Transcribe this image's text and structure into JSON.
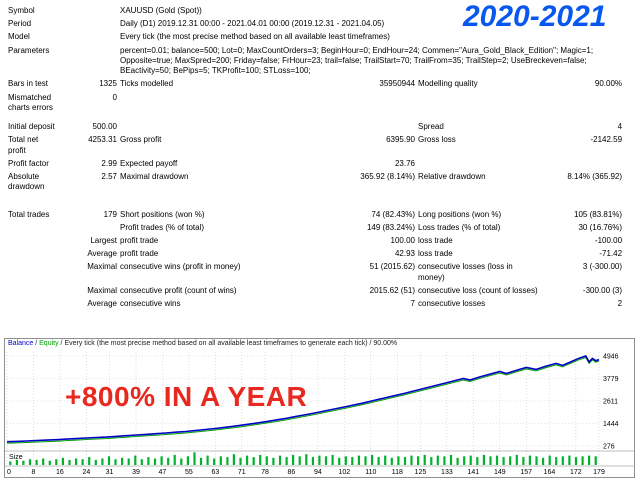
{
  "overlays": {
    "years": "2020-2021",
    "years_color": "#0857ee",
    "claim": "+800% IN A YEAR",
    "claim_color": "#e8291f"
  },
  "report": {
    "info_rows": [
      {
        "label": "Symbol",
        "value": "XAUUSD (Gold (Spot))"
      },
      {
        "label": "Period",
        "value": "Daily (D1) 2019.12.31 00:00 - 2021.04.01 00:00 (2019.12.31 - 2021.04.05)"
      },
      {
        "label": "Model",
        "value": "Every tick (the most precise method based on all available least timeframes)"
      },
      {
        "label": "Parameters",
        "value": "percent=0.01; balance=500; Lot=0; MaxCountOrders=3; BeginHour=0; EndHour=24; Commen=\"Aura_Gold_Black_Edition\"; Magic=1; Opposite=true; MaxSpred=200; Friday=false; FrHour=23; trail=false; TrailStart=70; TrailFrom=35; TrailStep=2; UseBreckeven=false; BEactivity=50; BePips=5; TKProfit=100; STLoss=100;"
      }
    ],
    "stat_rows": [
      {
        "cells": [
          "Bars in test",
          "1325",
          "Ticks modelled",
          "35950944",
          "Modelling quality",
          "90.00%"
        ]
      },
      {
        "cells": [
          "Mismatched charts errors",
          "0",
          "",
          "",
          "",
          ""
        ]
      },
      {
        "cells": [
          "Initial deposit",
          "500.00",
          "",
          "",
          "Spread",
          "4"
        ],
        "gap_before": "small"
      },
      {
        "cells": [
          "Total net profit",
          "4253.31",
          "Gross profit",
          "6395.90",
          "Gross loss",
          "-2142.59"
        ]
      },
      {
        "cells": [
          "Profit factor",
          "2.99",
          "Expected payoff",
          "23.76",
          "",
          ""
        ]
      },
      {
        "cells": [
          "Absolute drawdown",
          "2.57",
          "Maximal drawdown",
          "365.92 (8.14%)",
          "Relative drawdown",
          "8.14% (365.92)"
        ]
      },
      {
        "cells": [
          "Total trades",
          "179",
          "Short positions (won %)",
          "74 (82.43%)",
          "Long positions (won %)",
          "105 (83.81%)"
        ],
        "gap_before": "large"
      },
      {
        "cells": [
          "",
          "",
          "Profit trades (% of total)",
          "149 (83.24%)",
          "Loss trades (% of total)",
          "30 (16.76%)"
        ]
      },
      {
        "cells": [
          "",
          "Largest",
          "profit trade",
          "100.00",
          "loss trade",
          "-100.00"
        ]
      },
      {
        "cells": [
          "",
          "Average",
          "profit trade",
          "42.93",
          "loss trade",
          "-71.42"
        ]
      },
      {
        "cells": [
          "",
          "Maximal",
          "consecutive wins (profit in money)",
          "51 (2015.62)",
          "consecutive losses (loss in money)",
          "3 (-300.00)"
        ]
      },
      {
        "cells": [
          "",
          "Maximal",
          "consecutive profit (count of wins)",
          "2015.62 (51)",
          "consecutive loss (count of losses)",
          "-300.00 (3)"
        ]
      },
      {
        "cells": [
          "",
          "Average",
          "consecutive wins",
          "7",
          "consecutive losses",
          "2"
        ]
      }
    ]
  },
  "chart_data": {
    "type": "line",
    "legend": {
      "balance": "Balance",
      "equity": "Equity",
      "sep": " / ",
      "model_text": "Every tick (the most precise method based on all available least timeframes to generate each tick)",
      "quality": "90.00%"
    },
    "x_range": [
      0,
      179
    ],
    "y_range": [
      276,
      4946
    ],
    "y_ticks": [
      276,
      1444,
      2611,
      3779,
      4946
    ],
    "x_ticks": [
      0,
      8,
      16,
      24,
      31,
      39,
      47,
      55,
      63,
      71,
      78,
      86,
      94,
      102,
      110,
      118,
      125,
      133,
      141,
      149,
      157,
      164,
      172,
      179
    ],
    "grid": true,
    "legend_position": "top-left",
    "colors": {
      "grid": "#c8c8c8",
      "frame": "#aaaaaa",
      "size_bars": "#00b22c",
      "balance_line": "#0000c8",
      "equity_line": "#00a000"
    },
    "series": [
      {
        "name": "Balance",
        "color": "#0000c8",
        "points": [
          [
            0,
            500
          ],
          [
            3,
            515
          ],
          [
            6,
            535
          ],
          [
            9,
            560
          ],
          [
            12,
            580
          ],
          [
            15,
            605
          ],
          [
            18,
            635
          ],
          [
            21,
            660
          ],
          [
            24,
            690
          ],
          [
            27,
            715
          ],
          [
            30,
            740
          ],
          [
            33,
            775
          ],
          [
            36,
            810
          ],
          [
            39,
            845
          ],
          [
            42,
            880
          ],
          [
            45,
            915
          ],
          [
            48,
            950
          ],
          [
            51,
            990
          ],
          [
            54,
            1030
          ],
          [
            57,
            1080
          ],
          [
            60,
            1130
          ],
          [
            63,
            1185
          ],
          [
            66,
            1245
          ],
          [
            69,
            1310
          ],
          [
            72,
            1380
          ],
          [
            75,
            1455
          ],
          [
            78,
            1530
          ],
          [
            81,
            1615
          ],
          [
            84,
            1700
          ],
          [
            87,
            1795
          ],
          [
            90,
            1890
          ],
          [
            93,
            1990
          ],
          [
            96,
            2090
          ],
          [
            99,
            2195
          ],
          [
            102,
            2300
          ],
          [
            105,
            2410
          ],
          [
            108,
            2520
          ],
          [
            111,
            2640
          ],
          [
            114,
            2760
          ],
          [
            117,
            2880
          ],
          [
            120,
            3000
          ],
          [
            123,
            3130
          ],
          [
            126,
            3260
          ],
          [
            129,
            3390
          ],
          [
            132,
            3520
          ],
          [
            135,
            3650
          ],
          [
            138,
            3780
          ],
          [
            140,
            3700
          ],
          [
            143,
            3860
          ],
          [
            146,
            4000
          ],
          [
            149,
            4140
          ],
          [
            151,
            4040
          ],
          [
            154,
            4200
          ],
          [
            157,
            4350
          ],
          [
            160,
            4250
          ],
          [
            163,
            4420
          ],
          [
            166,
            4560
          ],
          [
            168,
            4460
          ],
          [
            171,
            4680
          ],
          [
            173,
            4830
          ],
          [
            175,
            4946
          ],
          [
            176,
            4640
          ],
          [
            177,
            4820
          ],
          [
            178,
            4700
          ],
          [
            179,
            4753
          ]
        ]
      },
      {
        "name": "Equity",
        "color": "#00a000",
        "points_ref": "Balance"
      }
    ],
    "size_panel": {
      "label": "Size",
      "bar_color": "#00b22c",
      "values": [
        0.5,
        0.7,
        0.6,
        0.8,
        0.7,
        0.9,
        0.6,
        0.8,
        1.0,
        0.7,
        0.9,
        0.8,
        1.1,
        0.7,
        0.9,
        1.2,
        0.8,
        1.0,
        0.9,
        1.3,
        0.8,
        1.1,
        0.9,
        1.2,
        1.0,
        1.4,
        0.9,
        1.2,
        1.76,
        1.0,
        1.3,
        0.9,
        1.2,
        1.1,
        1.5,
        1.0,
        1.3,
        1.1,
        1.4,
        1.2,
        1.0,
        1.3,
        1.1,
        1.4,
        1.2,
        1.5,
        1.1,
        1.3,
        1.2,
        1.4,
        1.0,
        1.2,
        1.1,
        1.3,
        1.2,
        1.4,
        1.1,
        1.3,
        1.0,
        1.2,
        1.1,
        1.3,
        1.2,
        1.4,
        1.1,
        1.3,
        1.2,
        1.4,
        1.0,
        1.2,
        1.3,
        1.1,
        1.4,
        1.2,
        1.3,
        1.1,
        1.2,
        1.4,
        1.1,
        1.3,
        1.2,
        1.0,
        1.3,
        1.1,
        1.2,
        1.3,
        1.1,
        1.2,
        1.3,
        1.2
      ]
    }
  }
}
